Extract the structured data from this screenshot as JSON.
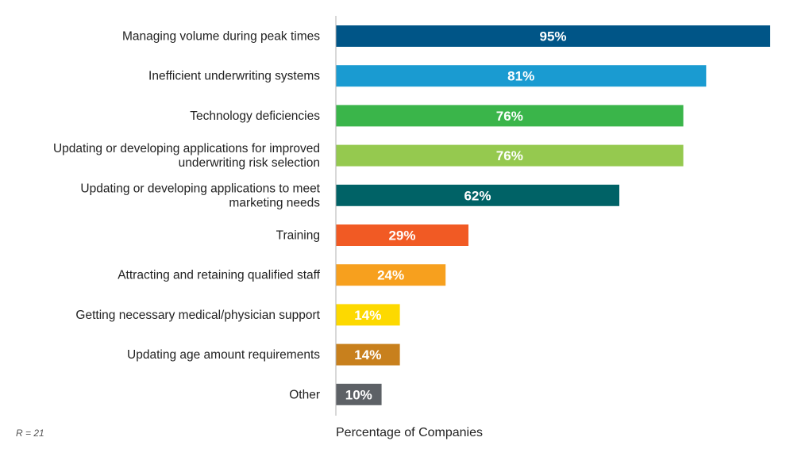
{
  "chart_data": {
    "type": "bar",
    "orientation": "horizontal",
    "categories": [
      [
        "Managing volume during peak times"
      ],
      [
        "Inefficient underwriting systems"
      ],
      [
        "Technology deficiencies"
      ],
      [
        "Updating or developing applications for improved",
        "underwriting risk selection"
      ],
      [
        "Updating or developing applications to meet",
        "marketing needs"
      ],
      [
        "Training"
      ],
      [
        "Attracting and retaining qualified staff"
      ],
      [
        "Getting necessary medical/physician support"
      ],
      [
        "Updating age amount requirements"
      ],
      [
        "Other"
      ]
    ],
    "values": [
      95,
      81,
      76,
      76,
      62,
      29,
      24,
      14,
      14,
      10
    ],
    "value_labels": [
      "95%",
      "81%",
      "76%",
      "76%",
      "62%",
      "29%",
      "24%",
      "14%",
      "14%",
      "10%"
    ],
    "colors": [
      "#005587",
      "#1a9bd1",
      "#3ab54a",
      "#95c94f",
      "#006266",
      "#f15a24",
      "#f7a01e",
      "#fdd900",
      "#c8801d",
      "#5d6166"
    ],
    "xlabel": "Percentage of Companies",
    "xlim": [
      0,
      95
    ],
    "grid": false,
    "note": "R = 21"
  }
}
